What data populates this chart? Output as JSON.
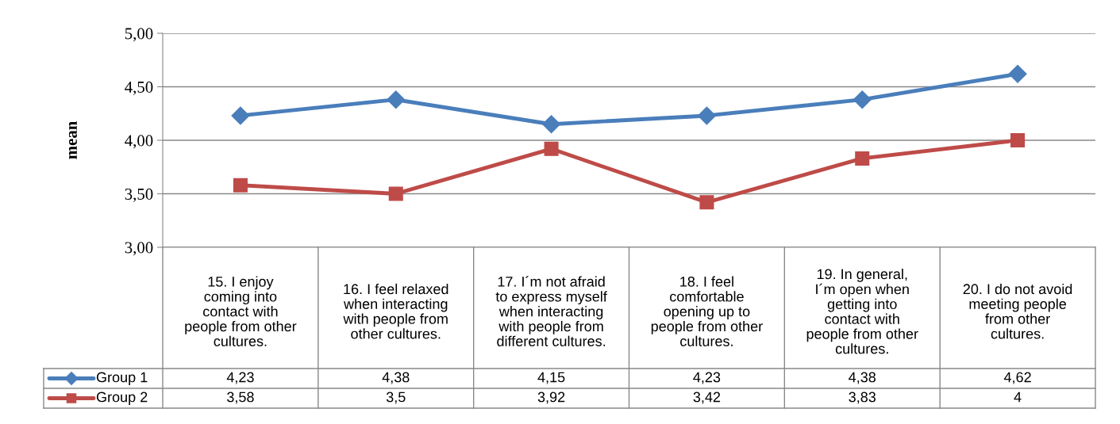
{
  "chart_data": {
    "type": "line",
    "ylabel": "mean",
    "categories": [
      "15. I enjoy coming into contact with people from other cultures.",
      "16. I feel relaxed when interacting with people from other cultures.",
      "17. I´m not afraid to express myself when interacting with people from different cultures.",
      "18. I feel comfortable opening up to people from other cultures.",
      "19. In general, I´m open when getting into contact with people from other cultures.",
      "20. I do not avoid meeting people from other cultures."
    ],
    "series": [
      {
        "name": "Group 1",
        "color": "#4a7ebb",
        "marker": "diamond",
        "values": [
          4.23,
          4.38,
          4.15,
          4.23,
          4.38,
          4.62
        ],
        "value_labels": [
          "4,23",
          "4,38",
          "4,15",
          "4,23",
          "4,38",
          "4,62"
        ]
      },
      {
        "name": "Group 2",
        "color": "#be4b48",
        "marker": "square",
        "values": [
          3.58,
          3.5,
          3.92,
          3.42,
          3.83,
          4
        ],
        "value_labels": [
          "3,58",
          "3,5",
          "3,92",
          "3,42",
          "3,83",
          "4"
        ]
      }
    ],
    "ylim": [
      3,
      5
    ],
    "yticks": [
      {
        "value": 3,
        "label": "3,00"
      },
      {
        "value": 3.5,
        "label": "3,50"
      },
      {
        "value": 4,
        "label": "4,00"
      },
      {
        "value": 4.5,
        "label": "4,50"
      },
      {
        "value": 5,
        "label": "5,00"
      }
    ],
    "grid": "y",
    "line_style": "solid",
    "legend": "bottom left"
  }
}
